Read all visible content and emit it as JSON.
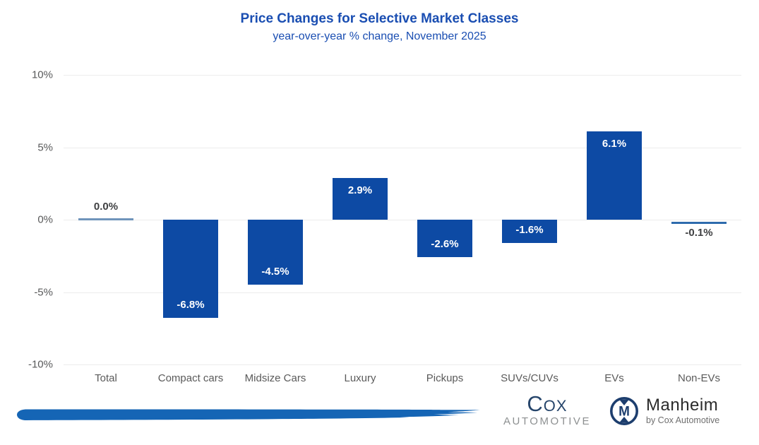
{
  "header": {
    "title": "Price Changes for Selective Market Classes",
    "subtitle": "year-over-year % change, November 2025",
    "title_color": "#1a4eb2"
  },
  "chart_data": {
    "type": "bar",
    "title": "Price Changes for Selective Market Classes",
    "subtitle": "year-over-year % change, November 2025",
    "categories": [
      "Total",
      "Compact cars",
      "Midsize Cars",
      "Luxury",
      "Pickups",
      "SUVs/CUVs",
      "EVs",
      "Non-EVs"
    ],
    "values": [
      0.0,
      -6.8,
      -4.5,
      2.9,
      -2.6,
      -1.6,
      6.1,
      -0.1
    ],
    "value_labels": [
      "0.0%",
      "-6.8%",
      "-4.5%",
      "2.9%",
      "-2.6%",
      "-1.6%",
      "6.1%",
      "-0.1%"
    ],
    "xlabel": "",
    "ylabel": "",
    "ylim": [
      -10,
      10
    ],
    "yticks": [
      {
        "value": 10,
        "label": "10%"
      },
      {
        "value": 5,
        "label": "5%"
      },
      {
        "value": 0,
        "label": "0%"
      },
      {
        "value": -5,
        "label": "-5%"
      },
      {
        "value": -10,
        "label": "-10%"
      }
    ],
    "grid": true,
    "legend": false,
    "bar_color": "#0d4aa4",
    "inside_label_color": "#ffffff",
    "outside_label_color": "#3f4042",
    "near_zero_threshold": 0.15,
    "near_zero_colors": {
      "0": "#6f94bb",
      "7": "#2e6bad"
    }
  },
  "axis": {
    "tick_color": "#58595a",
    "grid_color": "#ececec",
    "category_color": "#5a5a5a"
  },
  "footer": {
    "brush_color": "#1565b5",
    "cox": {
      "name": "Cox",
      "division": "AUTOMOTIVE",
      "name_color": "#26456b",
      "division_color": "#8d9091"
    },
    "manheim": {
      "monogram": "M",
      "name": "Manheim",
      "tagline": "by Cox Automotive",
      "navy": "#1d3e6e",
      "name_color": "#2b2b2b",
      "tagline_color": "#6f6f6f"
    }
  }
}
